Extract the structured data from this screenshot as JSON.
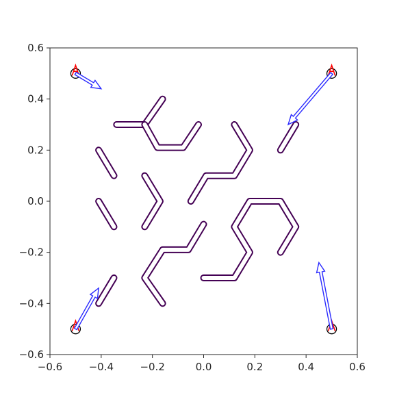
{
  "chart_data": {
    "type": "line",
    "title": "",
    "xlabel": "",
    "ylabel": "",
    "xlim": [
      -0.6,
      0.6
    ],
    "ylim": [
      -0.6,
      0.6
    ],
    "grid": false,
    "x_ticks": [
      {
        "value": -0.6,
        "label": "−0.6"
      },
      {
        "value": -0.4,
        "label": "−0.4"
      },
      {
        "value": -0.2,
        "label": "−0.2"
      },
      {
        "value": 0.0,
        "label": "0.0"
      },
      {
        "value": 0.2,
        "label": "0.2"
      },
      {
        "value": 0.4,
        "label": "0.4"
      },
      {
        "value": 0.6,
        "label": "0.6"
      }
    ],
    "y_ticks": [
      {
        "value": 0.6,
        "label": "0.6"
      },
      {
        "value": 0.4,
        "label": "0.4"
      },
      {
        "value": 0.2,
        "label": "0.2"
      },
      {
        "value": 0.0,
        "label": "0.0"
      },
      {
        "value": -0.2,
        "label": "−0.2"
      },
      {
        "value": -0.4,
        "label": "−0.4"
      },
      {
        "value": -0.6,
        "label": "−0.6"
      }
    ],
    "colors": {
      "path": "#440154",
      "path_inner": "#ffffff",
      "arrow": "#2a2aff",
      "marker": "#ff0000",
      "circle": "#000000",
      "axes": "#262626"
    },
    "paths": [
      {
        "id": "p1",
        "points": [
          [
            -0.34,
            0.3
          ],
          [
            -0.23,
            0.3
          ],
          [
            -0.16,
            0.4
          ]
        ]
      },
      {
        "id": "p2",
        "points": [
          [
            -0.23,
            0.3
          ],
          [
            -0.18,
            0.21
          ],
          [
            -0.08,
            0.21
          ],
          [
            -0.02,
            0.3
          ]
        ]
      },
      {
        "id": "p3",
        "points": [
          [
            0.12,
            0.3
          ],
          [
            0.18,
            0.2
          ],
          [
            0.12,
            0.1
          ],
          [
            0.01,
            0.1
          ],
          [
            -0.05,
            0.0
          ]
        ]
      },
      {
        "id": "p4",
        "points": [
          [
            0.3,
            0.2
          ],
          [
            0.36,
            0.3
          ]
        ]
      },
      {
        "id": "p5",
        "points": [
          [
            -0.41,
            0.2
          ],
          [
            -0.35,
            0.1
          ]
        ]
      },
      {
        "id": "p6",
        "points": [
          [
            -0.41,
            0.0
          ],
          [
            -0.35,
            -0.1
          ]
        ]
      },
      {
        "id": "p7",
        "points": [
          [
            -0.23,
            0.1
          ],
          [
            -0.17,
            0.0
          ],
          [
            -0.23,
            -0.1
          ]
        ]
      },
      {
        "id": "p8",
        "points": [
          [
            0.3,
            -0.2
          ],
          [
            0.36,
            -0.1
          ],
          [
            0.3,
            0.0
          ],
          [
            0.18,
            0.0
          ],
          [
            0.12,
            -0.1
          ],
          [
            0.18,
            -0.2
          ],
          [
            0.12,
            -0.3
          ],
          [
            0.0,
            -0.3
          ]
        ]
      },
      {
        "id": "p9",
        "points": [
          [
            0.0,
            -0.09
          ],
          [
            -0.06,
            -0.19
          ],
          [
            -0.16,
            -0.19
          ],
          [
            -0.23,
            -0.3
          ],
          [
            -0.16,
            -0.4
          ]
        ]
      },
      {
        "id": "p10",
        "points": [
          [
            -0.41,
            -0.4
          ],
          [
            -0.35,
            -0.3
          ]
        ]
      }
    ],
    "agents": [
      {
        "id": "top-left",
        "start": [
          -0.5,
          0.5
        ],
        "end": [
          -0.4,
          0.44
        ]
      },
      {
        "id": "top-right",
        "start": [
          0.5,
          0.5
        ],
        "end": [
          0.33,
          0.3
        ]
      },
      {
        "id": "bottom-left",
        "start": [
          -0.5,
          -0.5
        ],
        "end": [
          -0.41,
          -0.34
        ]
      },
      {
        "id": "bottom-right",
        "start": [
          0.5,
          -0.5
        ],
        "end": [
          0.45,
          -0.24
        ]
      }
    ]
  }
}
